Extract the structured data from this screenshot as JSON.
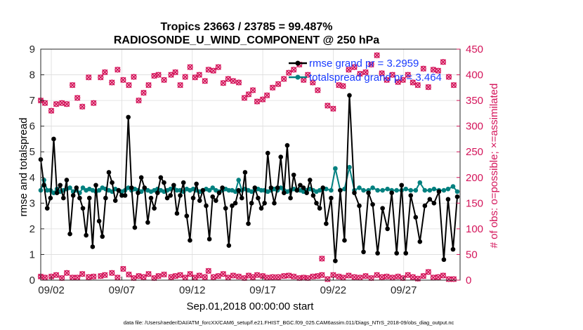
{
  "chart_data": {
    "type": "line",
    "title_line1": "Tropics 23663 / 23785 = 99.487%",
    "title_line2": "RADIOSONDE_U_WIND_COMPONENT @ 250 hPa",
    "xlabel": "Sep.01,2018 00:00:00 start",
    "ylabel_left": "rmse and totalspread",
    "ylabel_right": "# of obs: o=possible; ×=assimilated",
    "x_ticks": [
      {
        "day": 2,
        "label": "09/02"
      },
      {
        "day": 7,
        "label": "09/07"
      },
      {
        "day": 12,
        "label": "09/12"
      },
      {
        "day": 17,
        "label": "09/17"
      },
      {
        "day": 22,
        "label": "09/22"
      },
      {
        "day": 27,
        "label": "09/27"
      }
    ],
    "xlim": [
      1.25,
      31.0
    ],
    "ylim_left": [
      0,
      9
    ],
    "yticks_left": [
      "0",
      "1",
      "2",
      "3",
      "4",
      "5",
      "6",
      "7",
      "8",
      "9"
    ],
    "ylim_right": [
      0,
      450
    ],
    "yticks_right": [
      "0",
      "50",
      "100",
      "150",
      "200",
      "250",
      "300",
      "350",
      "400",
      "450"
    ],
    "colors": {
      "rmse": "#000000",
      "spread": "#00807f",
      "obs": "#d4145a",
      "grid": "#dcdcdc",
      "legend_text": "#1a3cff"
    },
    "series": [
      {
        "name": "rmse",
        "legend": "rmse grand pr = 3.2959",
        "values": [
          4.7,
          3.7,
          2.8,
          3.2,
          5.5,
          3.4,
          3.7,
          3.2,
          3.9,
          1.8,
          3.3,
          3.6,
          3.2,
          2.8,
          1.75,
          3.2,
          1.3,
          3.7,
          2.3,
          1.7,
          3.2,
          4.2,
          3.8,
          3.1,
          3.5,
          3.3,
          3.3,
          6.35,
          3.6,
          2.05,
          3.4,
          4.0,
          3.6,
          2.25,
          3.2,
          2.8,
          3.4,
          4.0,
          3.8,
          3.2,
          3.3,
          3.7,
          2.6,
          3.3,
          3.8,
          2.5,
          1.55,
          3.2,
          3.75,
          3.1,
          3.5,
          2.9,
          1.6,
          3.25,
          3.1,
          3.4,
          3.6,
          2.8,
          1.35,
          2.9,
          3.0,
          3.5,
          3.2,
          4.2,
          2.2,
          3.0,
          3.6,
          3.2,
          2.8,
          3.0,
          4.95,
          3.6,
          3.0,
          3.6,
          4.8,
          3.4,
          5.25,
          3.2,
          4.1,
          3.5,
          3.7,
          3.6,
          3.4,
          3.9,
          3.3,
          3.0,
          2.8,
          3.6
        ]
      },
      {
        "name": "totalspread",
        "legend": "totalspread grand pr = 3.464",
        "values": [
          3.5,
          3.9,
          3.5,
          3.5,
          3.4,
          3.55,
          3.45,
          3.5,
          3.55,
          3.6,
          3.45,
          3.5,
          3.4,
          3.6,
          3.5,
          3.55,
          3.5,
          3.45,
          3.5,
          3.6,
          3.55,
          3.5,
          3.45,
          3.55,
          3.5,
          3.45,
          3.5,
          3.6,
          3.5,
          3.55,
          3.5,
          3.45,
          3.55,
          3.5,
          3.45,
          3.5,
          3.55,
          3.5,
          3.45,
          3.5,
          3.55,
          3.6,
          3.5,
          3.5,
          3.45,
          3.55,
          3.5,
          3.55,
          3.5,
          3.45,
          3.5,
          3.55,
          3.5,
          3.6,
          3.5,
          3.45,
          3.5,
          3.55,
          3.5,
          3.5,
          3.45,
          3.9,
          3.5,
          3.55,
          3.5,
          3.45,
          3.5,
          3.55,
          3.5,
          3.5,
          3.45,
          3.5,
          3.55,
          3.5,
          3.6,
          3.5,
          3.45,
          3.5,
          3.55,
          3.5,
          3.5,
          3.45,
          3.5,
          3.55,
          3.5,
          3.45,
          3.5,
          3.55
        ]
      }
    ],
    "extra_points": {
      "rmse": [
        [
          21.5,
          2.2
        ],
        [
          21.85,
          3.2
        ],
        [
          22.15,
          0.75
        ],
        [
          22.5,
          3.5
        ],
        [
          22.8,
          1.55
        ],
        [
          23.15,
          7.2
        ],
        [
          23.5,
          3.4
        ],
        [
          23.85,
          2.9
        ],
        [
          24.15,
          1.1
        ],
        [
          24.5,
          3.4
        ],
        [
          24.8,
          2.95
        ],
        [
          25.15,
          1.05
        ],
        [
          25.5,
          2.8
        ],
        [
          25.85,
          2.0
        ],
        [
          26.15,
          3.4
        ],
        [
          26.5,
          1.05
        ],
        [
          26.85,
          3.7
        ],
        [
          27.15,
          1.05
        ],
        [
          27.5,
          3.3
        ],
        [
          27.85,
          2.45
        ],
        [
          28.15,
          1.5
        ],
        [
          28.5,
          2.9
        ],
        [
          28.85,
          3.15
        ],
        [
          29.15,
          3.0
        ],
        [
          29.5,
          3.45
        ],
        [
          29.85,
          0.8
        ],
        [
          30.15,
          3.15
        ],
        [
          30.5,
          1.2
        ],
        [
          30.8,
          3.25
        ]
      ],
      "spread": [
        [
          21.5,
          3.55
        ],
        [
          21.85,
          3.5
        ],
        [
          22.15,
          4.35
        ],
        [
          22.5,
          3.5
        ],
        [
          22.8,
          3.55
        ],
        [
          23.15,
          4.4
        ],
        [
          23.5,
          3.5
        ],
        [
          23.85,
          3.6
        ],
        [
          24.15,
          3.5
        ],
        [
          24.5,
          3.5
        ],
        [
          24.8,
          3.6
        ],
        [
          25.15,
          3.5
        ],
        [
          25.5,
          3.5
        ],
        [
          25.85,
          3.55
        ],
        [
          26.15,
          3.5
        ],
        [
          26.5,
          3.5
        ],
        [
          26.85,
          3.5
        ],
        [
          27.15,
          3.55
        ],
        [
          27.5,
          3.5
        ],
        [
          27.85,
          3.5
        ],
        [
          28.15,
          3.8
        ],
        [
          28.5,
          3.5
        ],
        [
          28.85,
          3.5
        ],
        [
          29.15,
          3.55
        ],
        [
          29.5,
          3.5
        ],
        [
          29.85,
          3.5
        ],
        [
          30.15,
          3.55
        ],
        [
          30.5,
          3.65
        ],
        [
          30.8,
          3.45
        ]
      ]
    },
    "obs_possible": [
      [
        1.25,
        350
      ],
      [
        1.55,
        345
      ],
      [
        2.0,
        330
      ],
      [
        2.35,
        343
      ],
      [
        2.75,
        345
      ],
      [
        3.1,
        343
      ],
      [
        3.5,
        380
      ],
      [
        3.85,
        355
      ],
      [
        4.2,
        338
      ],
      [
        4.65,
        395
      ],
      [
        5.0,
        345
      ],
      [
        5.5,
        395
      ],
      [
        5.8,
        405
      ],
      [
        6.3,
        385
      ],
      [
        6.7,
        410
      ],
      [
        7.1,
        390
      ],
      [
        7.5,
        380
      ],
      [
        7.85,
        396
      ],
      [
        8.2,
        350
      ],
      [
        8.55,
        365
      ],
      [
        8.9,
        380
      ],
      [
        9.3,
        398
      ],
      [
        9.6,
        400
      ],
      [
        10.0,
        390
      ],
      [
        10.5,
        400
      ],
      [
        10.8,
        405
      ],
      [
        11.15,
        380
      ],
      [
        11.5,
        396
      ],
      [
        11.85,
        415
      ],
      [
        12.2,
        395
      ],
      [
        12.5,
        400
      ],
      [
        12.9,
        388
      ],
      [
        13.15,
        410
      ],
      [
        13.5,
        408
      ],
      [
        13.85,
        415
      ],
      [
        14.2,
        384
      ],
      [
        14.55,
        392
      ],
      [
        14.9,
        388
      ],
      [
        15.3,
        385
      ],
      [
        15.7,
        355
      ],
      [
        16.0,
        362
      ],
      [
        16.3,
        370
      ],
      [
        16.6,
        348
      ],
      [
        17.0,
        352
      ],
      [
        17.3,
        360
      ],
      [
        17.7,
        375
      ],
      [
        18.1,
        382
      ],
      [
        18.5,
        392
      ],
      [
        18.85,
        404
      ],
      [
        19.2,
        410
      ],
      [
        19.6,
        420
      ],
      [
        19.9,
        390
      ],
      [
        20.2,
        400
      ],
      [
        20.55,
        385
      ],
      [
        20.9,
        370
      ],
      [
        21.2,
        42
      ],
      [
        21.6,
        340
      ],
      [
        22.0,
        334
      ],
      [
        22.4,
        380
      ],
      [
        22.7,
        378
      ],
      [
        23.1,
        410
      ],
      [
        23.5,
        415
      ],
      [
        23.9,
        402
      ],
      [
        24.3,
        405
      ],
      [
        24.7,
        420
      ],
      [
        25.1,
        438
      ],
      [
        25.45,
        403
      ],
      [
        25.8,
        390
      ],
      [
        26.2,
        400
      ],
      [
        26.6,
        386
      ],
      [
        26.95,
        390
      ],
      [
        27.3,
        400
      ],
      [
        27.65,
        385
      ],
      [
        28.0,
        380
      ],
      [
        28.4,
        412
      ],
      [
        28.75,
        376
      ],
      [
        29.1,
        410
      ],
      [
        29.45,
        408
      ],
      [
        29.8,
        425
      ],
      [
        30.2,
        396
      ],
      [
        30.55,
        380
      ]
    ],
    "obs_assimilated": [
      [
        1.25,
        7
      ],
      [
        1.55,
        5
      ],
      [
        2.0,
        7
      ],
      [
        2.35,
        10
      ],
      [
        2.75,
        4
      ],
      [
        3.1,
        14
      ],
      [
        3.5,
        5
      ],
      [
        3.85,
        5
      ],
      [
        4.2,
        12
      ],
      [
        4.65,
        6
      ],
      [
        5.0,
        7
      ],
      [
        5.5,
        8
      ],
      [
        5.8,
        10
      ],
      [
        6.3,
        14
      ],
      [
        6.7,
        5
      ],
      [
        7.1,
        22
      ],
      [
        7.5,
        11
      ],
      [
        7.85,
        4
      ],
      [
        8.2,
        8
      ],
      [
        8.55,
        6
      ],
      [
        8.9,
        12
      ],
      [
        9.3,
        4
      ],
      [
        9.6,
        8
      ],
      [
        10.0,
        11
      ],
      [
        10.5,
        6
      ],
      [
        10.8,
        8
      ],
      [
        11.15,
        10
      ],
      [
        11.5,
        5
      ],
      [
        11.85,
        12
      ],
      [
        12.2,
        5
      ],
      [
        12.5,
        9
      ],
      [
        12.9,
        6
      ],
      [
        13.15,
        18
      ],
      [
        13.5,
        6
      ],
      [
        13.85,
        8
      ],
      [
        14.2,
        12
      ],
      [
        14.55,
        5
      ],
      [
        14.9,
        9
      ],
      [
        15.3,
        7
      ],
      [
        15.7,
        4
      ],
      [
        16.0,
        9
      ],
      [
        16.3,
        6
      ],
      [
        16.6,
        10
      ],
      [
        17.0,
        8
      ],
      [
        17.3,
        5
      ],
      [
        17.7,
        6
      ],
      [
        18.1,
        6
      ],
      [
        18.5,
        8
      ],
      [
        18.85,
        9
      ],
      [
        19.2,
        7
      ],
      [
        19.6,
        4
      ],
      [
        19.9,
        5
      ],
      [
        20.2,
        4
      ],
      [
        20.55,
        7
      ],
      [
        20.9,
        8
      ],
      [
        21.2,
        10
      ],
      [
        21.6,
        2
      ],
      [
        22.0,
        10
      ],
      [
        22.4,
        7
      ],
      [
        22.7,
        5
      ],
      [
        23.1,
        9
      ],
      [
        23.5,
        6
      ],
      [
        23.9,
        5
      ],
      [
        24.3,
        8
      ],
      [
        24.7,
        4
      ],
      [
        25.1,
        10
      ],
      [
        25.45,
        6
      ],
      [
        25.8,
        7
      ],
      [
        26.2,
        5
      ],
      [
        26.6,
        7
      ],
      [
        26.95,
        4
      ],
      [
        27.3,
        10
      ],
      [
        27.65,
        6
      ],
      [
        28.0,
        3
      ],
      [
        28.4,
        8
      ],
      [
        28.75,
        16
      ],
      [
        29.1,
        5
      ],
      [
        29.45,
        6
      ],
      [
        29.8,
        9
      ],
      [
        30.2,
        2
      ],
      [
        30.55,
        2
      ]
    ]
  },
  "footer": "data file: /Users/raeder/DAI/ATM_forcXX/CAM6_setup/f.e21.FHIST_BGC.f09_025.CAM6assim.011/Diags_NTrS_2018-09/obs_diag_output.nc"
}
